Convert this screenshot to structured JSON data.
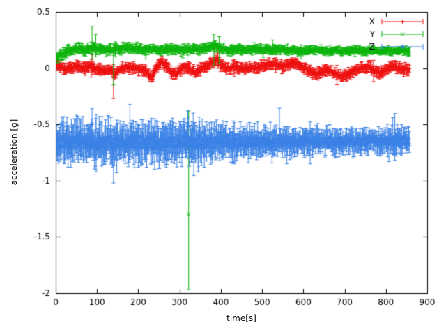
{
  "chart_data": {
    "type": "errorbar",
    "xlabel": "time[s]",
    "ylabel": "acceleration [g]",
    "xlim": [
      0,
      900
    ],
    "ylim": [
      -2,
      0.5
    ],
    "grid": false,
    "background_color": "#ffffff",
    "axis_color": "#000000",
    "xticks": [
      0,
      100,
      200,
      300,
      400,
      500,
      600,
      700,
      800,
      900
    ],
    "xtick_labels": [
      "0",
      "100",
      "200",
      "300",
      "400",
      "500",
      "600",
      "700",
      "800",
      "900"
    ],
    "yticks": [
      0.5,
      0,
      -0.5,
      -1,
      -1.5,
      -2
    ],
    "ytick_labels": [
      "0.5",
      "0",
      "-0.5",
      "-1",
      "-1.5",
      "-2"
    ],
    "legend": {
      "position": "top-right",
      "entries": [
        {
          "label": "X",
          "color": "#ee1111",
          "marker": "plus"
        },
        {
          "label": "Y",
          "color": "#0ab40a",
          "marker": "cross"
        },
        {
          "label": "Z",
          "color": "#3b82e6",
          "marker": "star"
        }
      ]
    },
    "series": [
      {
        "name": "X",
        "color": "#ee1111",
        "marker": "plus",
        "seed": 101,
        "dt": 1.5,
        "x_start": 2,
        "x_end": 857,
        "scatter": 0.013,
        "err": 0.035,
        "spike_p": 0.012,
        "spike_f": 2.2,
        "err_profile": [
          [
            0,
            1.0
          ],
          [
            857,
            1.0
          ]
        ],
        "anchors": [
          [
            0,
            0.05
          ],
          [
            12,
            0.01
          ],
          [
            25,
            -0.01
          ],
          [
            40,
            0.01
          ],
          [
            55,
            0.02
          ],
          [
            70,
            0.0
          ],
          [
            85,
            0.02
          ],
          [
            100,
            -0.01
          ],
          [
            115,
            -0.03
          ],
          [
            130,
            -0.01
          ],
          [
            145,
            -0.04
          ],
          [
            160,
            -0.01
          ],
          [
            175,
            0.01
          ],
          [
            190,
            0.0
          ],
          [
            205,
            -0.01
          ],
          [
            220,
            -0.03
          ],
          [
            232,
            -0.09
          ],
          [
            243,
            0.0
          ],
          [
            255,
            0.05
          ],
          [
            268,
            0.02
          ],
          [
            280,
            -0.03
          ],
          [
            292,
            -0.06
          ],
          [
            303,
            -0.01
          ],
          [
            315,
            0.02
          ],
          [
            328,
            -0.02
          ],
          [
            340,
            -0.04
          ],
          [
            352,
            0.0
          ],
          [
            365,
            0.01
          ],
          [
            378,
            0.05
          ],
          [
            390,
            0.08
          ],
          [
            400,
            0.03
          ],
          [
            415,
            0.0
          ],
          [
            430,
            0.01
          ],
          [
            445,
            0.0
          ],
          [
            460,
            -0.01
          ],
          [
            475,
            0.0
          ],
          [
            490,
            0.01
          ],
          [
            505,
            0.02
          ],
          [
            520,
            0.04
          ],
          [
            535,
            0.03
          ],
          [
            550,
            0.01
          ],
          [
            565,
            0.03
          ],
          [
            578,
            0.05
          ],
          [
            590,
            0.02
          ],
          [
            605,
            0.0
          ],
          [
            618,
            -0.03
          ],
          [
            632,
            -0.05
          ],
          [
            645,
            -0.03
          ],
          [
            658,
            -0.02
          ],
          [
            672,
            -0.04
          ],
          [
            688,
            -0.07
          ],
          [
            702,
            -0.06
          ],
          [
            716,
            -0.04
          ],
          [
            730,
            -0.01
          ],
          [
            745,
            0.0
          ],
          [
            760,
            0.01
          ],
          [
            772,
            -0.02
          ],
          [
            785,
            -0.05
          ],
          [
            798,
            -0.02
          ],
          [
            810,
            0.01
          ],
          [
            822,
            0.02
          ],
          [
            835,
            -0.01
          ],
          [
            857,
            -0.01
          ]
        ],
        "outliers": [
          {
            "x": 88,
            "y": 0.02,
            "lo": -0.06,
            "hi": 0.12
          },
          {
            "x": 140,
            "y": -0.05,
            "lo": -0.27,
            "hi": 0.03
          },
          {
            "x": 385,
            "y": 0.07,
            "lo": 0.0,
            "hi": 0.2
          },
          {
            "x": 393,
            "y": 0.06,
            "lo": 0.0,
            "hi": 0.16
          },
          {
            "x": 770,
            "y": -0.02,
            "lo": -0.12,
            "hi": 0.07
          }
        ]
      },
      {
        "name": "Y",
        "color": "#0ab40a",
        "marker": "cross",
        "seed": 202,
        "dt": 1.5,
        "x_start": 2,
        "x_end": 857,
        "scatter": 0.012,
        "err": 0.03,
        "spike_p": 0.01,
        "spike_f": 2.0,
        "err_profile": [
          [
            0,
            1.1
          ],
          [
            400,
            1.0
          ],
          [
            857,
            0.9
          ]
        ],
        "anchors": [
          [
            0,
            0.1
          ],
          [
            8,
            0.11
          ],
          [
            20,
            0.13
          ],
          [
            35,
            0.16
          ],
          [
            50,
            0.17
          ],
          [
            70,
            0.16
          ],
          [
            90,
            0.18
          ],
          [
            110,
            0.17
          ],
          [
            130,
            0.16
          ],
          [
            150,
            0.17
          ],
          [
            170,
            0.18
          ],
          [
            190,
            0.17
          ],
          [
            210,
            0.16
          ],
          [
            230,
            0.17
          ],
          [
            250,
            0.16
          ],
          [
            270,
            0.17
          ],
          [
            290,
            0.17
          ],
          [
            310,
            0.16
          ],
          [
            330,
            0.17
          ],
          [
            350,
            0.17
          ],
          [
            370,
            0.18
          ],
          [
            385,
            0.2
          ],
          [
            400,
            0.18
          ],
          [
            420,
            0.16
          ],
          [
            440,
            0.17
          ],
          [
            460,
            0.16
          ],
          [
            480,
            0.17
          ],
          [
            500,
            0.17
          ],
          [
            520,
            0.16
          ],
          [
            540,
            0.17
          ],
          [
            560,
            0.16
          ],
          [
            580,
            0.16
          ],
          [
            600,
            0.15
          ],
          [
            620,
            0.16
          ],
          [
            640,
            0.16
          ],
          [
            660,
            0.15
          ],
          [
            680,
            0.16
          ],
          [
            700,
            0.15
          ],
          [
            720,
            0.16
          ],
          [
            740,
            0.15
          ],
          [
            760,
            0.16
          ],
          [
            780,
            0.15
          ],
          [
            800,
            0.16
          ],
          [
            820,
            0.15
          ],
          [
            840,
            0.16
          ],
          [
            857,
            0.15
          ]
        ],
        "outliers": [
          {
            "x": 88,
            "y": 0.19,
            "lo": 0.08,
            "hi": 0.37
          },
          {
            "x": 97,
            "y": 0.18,
            "lo": 0.1,
            "hi": 0.3
          },
          {
            "x": 140,
            "y": 0.15,
            "lo": -0.15,
            "hi": 0.22
          },
          {
            "x": 383,
            "y": 0.19,
            "lo": 0.02,
            "hi": 0.3
          },
          {
            "x": 396,
            "y": 0.18,
            "lo": 0.04,
            "hi": 0.28
          },
          {
            "x": 322,
            "y": -1.3,
            "lo": -1.97,
            "hi": -0.38
          }
        ]
      },
      {
        "name": "Z",
        "color": "#3b82e6",
        "marker": "star",
        "seed": 303,
        "dt": 1.2,
        "x_start": 2,
        "x_end": 857,
        "scatter": 0.045,
        "err": 0.1,
        "spike_p": 0.025,
        "spike_f": 1.8,
        "err_profile": [
          [
            0,
            1.25
          ],
          [
            350,
            1.2
          ],
          [
            420,
            1.0
          ],
          [
            600,
            0.8
          ],
          [
            857,
            0.75
          ]
        ],
        "anchors": [
          [
            0,
            -0.66
          ],
          [
            50,
            -0.655
          ],
          [
            100,
            -0.66
          ],
          [
            150,
            -0.665
          ],
          [
            200,
            -0.66
          ],
          [
            250,
            -0.655
          ],
          [
            300,
            -0.65
          ],
          [
            350,
            -0.66
          ],
          [
            400,
            -0.66
          ],
          [
            450,
            -0.655
          ],
          [
            500,
            -0.66
          ],
          [
            550,
            -0.655
          ],
          [
            600,
            -0.65
          ],
          [
            650,
            -0.65
          ],
          [
            700,
            -0.65
          ],
          [
            750,
            -0.648
          ],
          [
            800,
            -0.645
          ],
          [
            857,
            -0.645
          ]
        ],
        "outliers": [
          {
            "x": 30,
            "y": -0.68,
            "lo": -0.88,
            "hi": -0.52
          },
          {
            "x": 60,
            "y": -0.6,
            "lo": -0.78,
            "hi": -0.46
          },
          {
            "x": 88,
            "y": -0.5,
            "lo": -0.72,
            "hi": -0.36
          },
          {
            "x": 95,
            "y": -0.7,
            "lo": -0.9,
            "hi": -0.55
          },
          {
            "x": 140,
            "y": -0.72,
            "lo": -1.02,
            "hi": -0.55
          },
          {
            "x": 148,
            "y": -0.7,
            "lo": -0.93,
            "hi": -0.5
          },
          {
            "x": 200,
            "y": -0.68,
            "lo": -0.88,
            "hi": -0.5
          },
          {
            "x": 240,
            "y": -0.58,
            "lo": -0.75,
            "hi": -0.45
          },
          {
            "x": 320,
            "y": -0.52,
            "lo": -0.7,
            "hi": -0.38
          },
          {
            "x": 333,
            "y": -0.55,
            "lo": -0.72,
            "hi": -0.4
          },
          {
            "x": 345,
            "y": -0.72,
            "lo": -0.92,
            "hi": -0.55
          },
          {
            "x": 360,
            "y": -0.7,
            "lo": -0.88,
            "hi": -0.52
          },
          {
            "x": 430,
            "y": -0.68,
            "lo": -0.85,
            "hi": -0.52
          },
          {
            "x": 520,
            "y": -0.58,
            "lo": -0.72,
            "hi": -0.48
          },
          {
            "x": 560,
            "y": -0.68,
            "lo": -0.85,
            "hi": -0.52
          }
        ]
      }
    ]
  }
}
